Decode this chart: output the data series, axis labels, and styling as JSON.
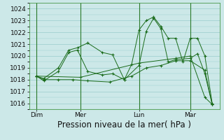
{
  "background_color": "#cce8e8",
  "grid_color": "#99cccc",
  "line_color": "#1a6b1a",
  "xlabel": "Pression niveau de la mer( hPa )",
  "xlabel_fontsize": 8.5,
  "ylim": [
    1015.5,
    1024.5
  ],
  "yticks": [
    1016,
    1017,
    1018,
    1019,
    1020,
    1021,
    1022,
    1023,
    1024
  ],
  "xtick_labels": [
    "Dim",
    "Mer",
    "Lun",
    "Mar"
  ],
  "xtick_positions": [
    0,
    3,
    7,
    10.5
  ],
  "vline_positions": [
    0,
    3,
    7,
    10.5
  ],
  "xlim": [
    -0.5,
    12.5
  ],
  "lines": [
    {
      "x": [
        0,
        0.5,
        1.5,
        2.2,
        2.8,
        3.5,
        4.5,
        5.2,
        6.0,
        6.5,
        7.0,
        7.5,
        8.0,
        8.5,
        9.0,
        9.5,
        10.0,
        10.5,
        11.0,
        11.5,
        12.0
      ],
      "y": [
        1018.3,
        1018.1,
        1019.0,
        1020.5,
        1020.7,
        1021.1,
        1020.3,
        1020.1,
        1018.0,
        1019.3,
        1022.2,
        1023.0,
        1023.3,
        1022.5,
        1021.5,
        1021.5,
        1019.5,
        1021.5,
        1021.5,
        1020.0,
        1016.0
      ]
    },
    {
      "x": [
        0,
        0.5,
        1.5,
        2.2,
        2.8,
        3.5,
        4.5,
        5.2,
        6.0,
        7.0,
        7.5,
        8.0,
        8.5,
        9.0,
        9.5,
        10.5,
        11.0,
        11.5,
        12.0
      ],
      "y": [
        1018.3,
        1017.9,
        1018.7,
        1020.3,
        1020.5,
        1018.7,
        1018.4,
        1018.5,
        1018.0,
        1019.2,
        1022.1,
        1023.2,
        1022.3,
        1019.5,
        1019.7,
        1019.8,
        1020.2,
        1018.5,
        1015.9
      ]
    },
    {
      "x": [
        0,
        0.5,
        1.5,
        2.5,
        3.5,
        5.0,
        6.5,
        7.5,
        8.5,
        9.5,
        10.5,
        11.5,
        12.0
      ],
      "y": [
        1018.3,
        1018.0,
        1018.0,
        1018.0,
        1017.9,
        1017.8,
        1018.3,
        1019.0,
        1019.2,
        1019.6,
        1019.6,
        1018.8,
        1015.9
      ]
    },
    {
      "x": [
        0,
        3.0,
        7.0,
        9.5,
        10.5,
        11.5,
        12.0
      ],
      "y": [
        1018.3,
        1018.2,
        1019.4,
        1019.8,
        1020.0,
        1016.5,
        1015.9
      ]
    }
  ]
}
